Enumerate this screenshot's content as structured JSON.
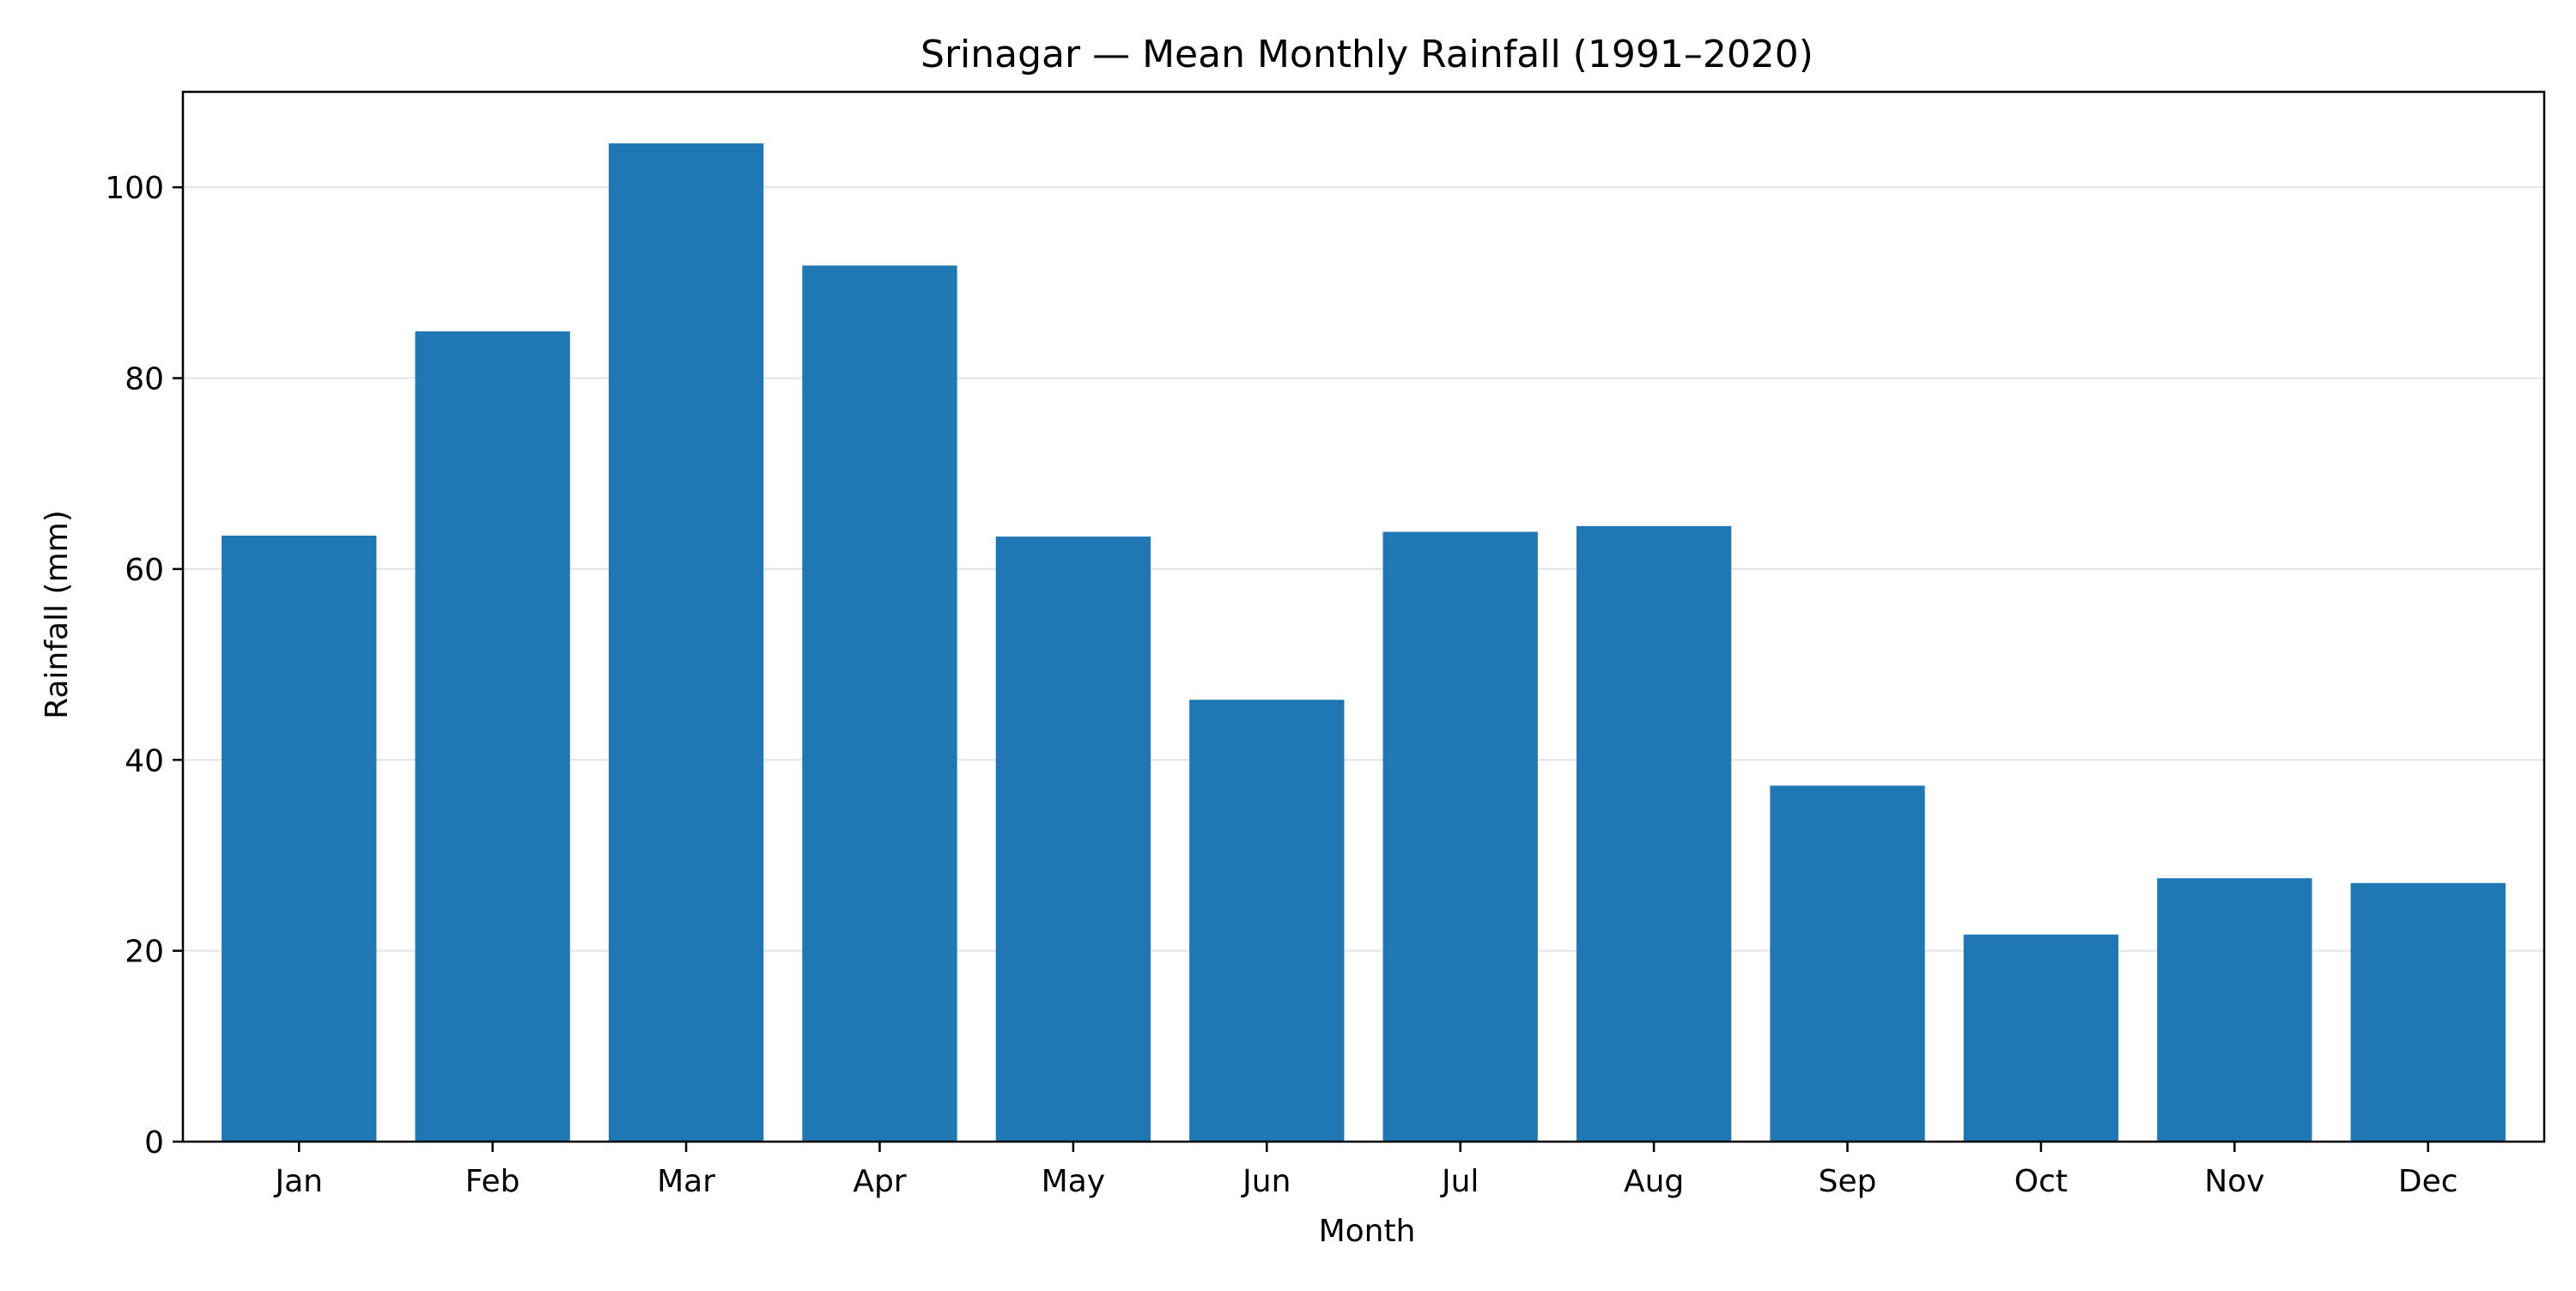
{
  "chart_data": {
    "type": "bar",
    "title": "Srinagar — Mean Monthly Rainfall (1991–2020)",
    "xlabel": "Month",
    "ylabel": "Rainfall (mm)",
    "categories": [
      "Jan",
      "Feb",
      "Mar",
      "Apr",
      "May",
      "Jun",
      "Jul",
      "Aug",
      "Sep",
      "Oct",
      "Nov",
      "Dec"
    ],
    "values": [
      63.5,
      84.9,
      104.6,
      91.8,
      63.4,
      46.3,
      63.9,
      64.5,
      37.3,
      21.7,
      27.6,
      27.1
    ],
    "ylim": [
      0,
      110
    ],
    "yticks": [
      0,
      20,
      40,
      60,
      80,
      100
    ],
    "grid": "horizontal",
    "bar_color": "#1f77b4",
    "grid_color": "#e3e3e3"
  }
}
